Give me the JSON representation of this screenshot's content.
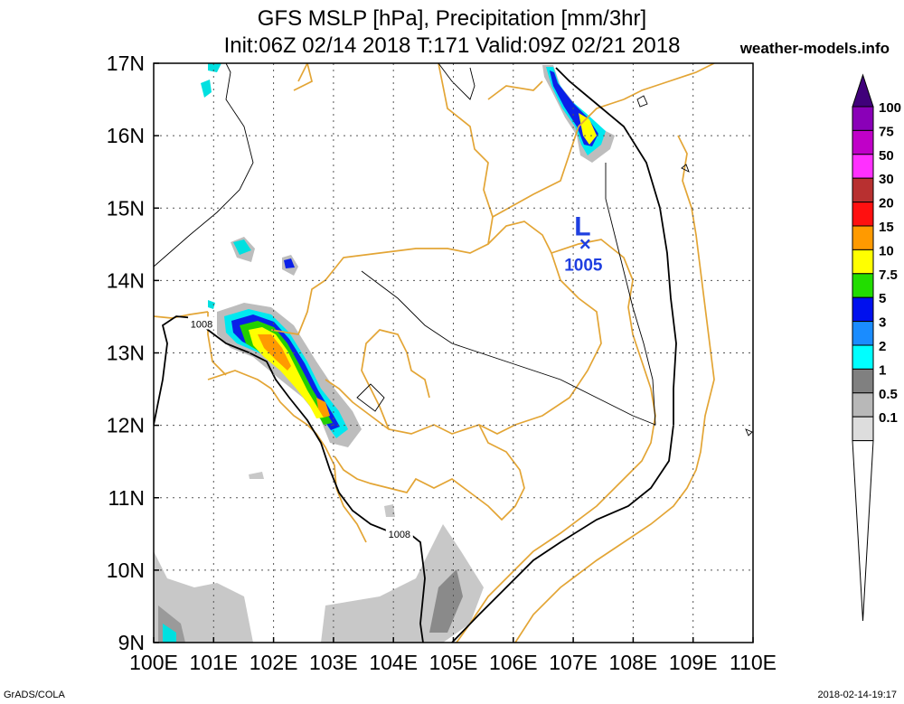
{
  "title": {
    "line1": "GFS MSLP [hPa], Precipitation [mm/3hr]",
    "line2": "Init:06Z 02/14 2018 T:171 Valid:09Z 02/21 2018"
  },
  "credit": "weather-models.info",
  "footer_left": "GrADS/COLA",
  "footer_right": "2018-02-14-19:17",
  "map": {
    "lon_range": [
      100,
      110
    ],
    "lat_range": [
      9,
      17
    ],
    "lon_labels": [
      "100E",
      "101E",
      "102E",
      "103E",
      "104E",
      "105E",
      "106E",
      "107E",
      "108E",
      "109E",
      "110E"
    ],
    "lat_labels": [
      "17N",
      "16N",
      "15N",
      "14N",
      "13N",
      "12N",
      "11N",
      "10N",
      "9N"
    ],
    "grid": true,
    "colors": {
      "border": "#e3a535",
      "isobar": "#000000",
      "low_marker": "#1f3fe0"
    },
    "low": {
      "symbol": "L",
      "pressure_label": "1005",
      "lon": 107.2,
      "lat": 14.5
    },
    "isobar_labels": [
      {
        "text": "1008",
        "lon": 100.8,
        "lat": 13.4
      },
      {
        "text": "1008",
        "lon": 104.1,
        "lat": 10.5
      }
    ]
  },
  "colorbar": {
    "levels": [
      "100",
      "75",
      "50",
      "30",
      "20",
      "15",
      "10",
      "7.5",
      "5",
      "3",
      "2",
      "1",
      "0.5",
      "0.1"
    ],
    "colors": [
      "#8a00b8",
      "#c000c8",
      "#ff30ff",
      "#b83030",
      "#ff1010",
      "#ff9a00",
      "#ffff00",
      "#22dd00",
      "#0010ee",
      "#1a8cff",
      "#00ffff",
      "#808080",
      "#b8b8b8",
      "#dddddd"
    ],
    "top_color": "#40007a"
  }
}
